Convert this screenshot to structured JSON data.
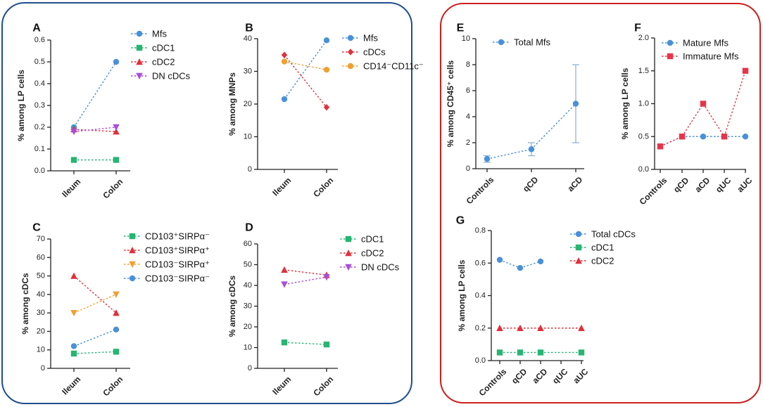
{
  "colors": {
    "blue": "#4a90d9",
    "green": "#27b573",
    "red": "#e0303a",
    "purple": "#a64fd8",
    "orange": "#f0a030",
    "red_square": "#e8344a",
    "group1_border": "#1f4e8c",
    "group2_border": "#cc1f1f",
    "error_bar": "#8fb3d6"
  },
  "chart_data": [
    {
      "id": "A",
      "letter": "A",
      "type": "line",
      "categories": [
        "Ileum",
        "Colon"
      ],
      "ylabel": "% among LP cells",
      "ylim": [
        0,
        0.6
      ],
      "yticks": [
        0.0,
        0.1,
        0.2,
        0.3,
        0.4,
        0.5,
        0.6
      ],
      "tick_decimals": 1,
      "series": [
        {
          "name": "Mfs",
          "marker": "circle",
          "color": "#4a90d9",
          "values": [
            0.2,
            0.5
          ]
        },
        {
          "name": "cDC1",
          "marker": "square",
          "color": "#27b573",
          "values": [
            0.05,
            0.05
          ]
        },
        {
          "name": "cDC2",
          "marker": "triangle-up",
          "color": "#e0303a",
          "values": [
            0.19,
            0.18
          ]
        },
        {
          "name": "DN cDCs",
          "marker": "triangle-down",
          "color": "#a64fd8",
          "values": [
            0.18,
            0.2
          ]
        }
      ]
    },
    {
      "id": "B",
      "letter": "B",
      "type": "line",
      "categories": [
        "Ileum",
        "Colon"
      ],
      "ylabel": "% among MNPs",
      "ylim": [
        0,
        40
      ],
      "yticks": [
        0,
        10,
        20,
        30,
        40
      ],
      "tick_decimals": 0,
      "series": [
        {
          "name": "Mfs",
          "marker": "circle",
          "color": "#4a90d9",
          "values": [
            21.5,
            39.5
          ]
        },
        {
          "name": "cDCs",
          "marker": "diamond",
          "color": "#e0303a",
          "values": [
            35,
            19
          ]
        },
        {
          "name": "CD14⁻CD11c⁻",
          "marker": "circle",
          "color": "#f0a030",
          "values": [
            33,
            30.5
          ]
        }
      ]
    },
    {
      "id": "C",
      "letter": "C",
      "type": "line",
      "categories": [
        "Ileum",
        "Colon"
      ],
      "ylabel": "% among cDCs",
      "ylim": [
        0,
        70
      ],
      "yticks": [
        0,
        10,
        20,
        30,
        40,
        50,
        60,
        70
      ],
      "tick_decimals": 0,
      "series": [
        {
          "name": "CD103⁺SIRPα⁻",
          "marker": "square",
          "color": "#27b573",
          "values": [
            8,
            9
          ]
        },
        {
          "name": "CD103⁺SIRPα⁺",
          "marker": "triangle-up",
          "color": "#e0303a",
          "values": [
            50,
            30
          ]
        },
        {
          "name": "CD103⁻SIRPα⁺",
          "marker": "triangle-down",
          "color": "#f0a030",
          "values": [
            30,
            40
          ]
        },
        {
          "name": "CD103⁻SIRPα⁻",
          "marker": "circle",
          "color": "#4a90d9",
          "values": [
            12,
            21
          ]
        }
      ]
    },
    {
      "id": "D",
      "letter": "D",
      "type": "line",
      "categories": [
        "Ileum",
        "Colon"
      ],
      "ylabel": "% among cDCs",
      "ylim": [
        0,
        60
      ],
      "yticks": [
        0,
        10,
        20,
        30,
        40,
        50,
        60
      ],
      "tick_decimals": 0,
      "series": [
        {
          "name": "cDC1",
          "marker": "square",
          "color": "#27b573",
          "values": [
            12.5,
            11.5
          ]
        },
        {
          "name": "cDC2",
          "marker": "triangle-up",
          "color": "#e0303a",
          "values": [
            47.5,
            45
          ]
        },
        {
          "name": "DN cDCs",
          "marker": "triangle-down",
          "color": "#a64fd8",
          "values": [
            40.5,
            44
          ]
        }
      ]
    },
    {
      "id": "E",
      "letter": "E",
      "type": "line",
      "categories": [
        "Controls",
        "qCD",
        "aCD"
      ],
      "ylabel": "% among CD45⁺ cells",
      "ylim": [
        0,
        10
      ],
      "yticks": [
        0,
        2,
        4,
        6,
        8,
        10
      ],
      "tick_decimals": 0,
      "series": [
        {
          "name": "Total Mfs",
          "marker": "circle",
          "color": "#4a90d9",
          "values": [
            0.75,
            1.5,
            5
          ],
          "error": [
            0.25,
            0.5,
            3
          ]
        }
      ]
    },
    {
      "id": "F",
      "letter": "F",
      "type": "line",
      "categories": [
        "Controls",
        "qCD",
        "aCD",
        "qUC",
        "aUC"
      ],
      "ylabel": "% among LP cells",
      "ylim": [
        0,
        2
      ],
      "yticks": [
        0.0,
        0.5,
        1.0,
        1.5,
        2.0
      ],
      "tick_decimals": 1,
      "series": [
        {
          "name": "Mature Mfs",
          "marker": "circle",
          "color": "#4a90d9",
          "values": [
            0.35,
            0.5,
            0.5,
            0.5,
            0.5
          ]
        },
        {
          "name": "Immature Mfs",
          "marker": "square",
          "color": "#e8344a",
          "values": [
            0.35,
            0.5,
            1.0,
            0.5,
            1.5
          ]
        }
      ]
    },
    {
      "id": "G",
      "letter": "G",
      "type": "line",
      "categories": [
        "Controls",
        "qCD",
        "aCD",
        "qUC",
        "aUC"
      ],
      "ylabel": "% among LP cells",
      "ylim": [
        0,
        0.8
      ],
      "yticks": [
        0.0,
        0.2,
        0.4,
        0.6,
        0.8
      ],
      "tick_decimals": 1,
      "series": [
        {
          "name": "Total cDCs",
          "marker": "circle",
          "color": "#4a90d9",
          "values": [
            0.62,
            0.57,
            0.61,
            null,
            null
          ]
        },
        {
          "name": "cDC1",
          "marker": "square",
          "color": "#27b573",
          "values": [
            0.05,
            0.05,
            0.05,
            null,
            0.05
          ]
        },
        {
          "name": "cDC2",
          "marker": "triangle-up",
          "color": "#e0303a",
          "values": [
            0.2,
            0.2,
            0.2,
            null,
            0.2
          ]
        }
      ]
    }
  ]
}
